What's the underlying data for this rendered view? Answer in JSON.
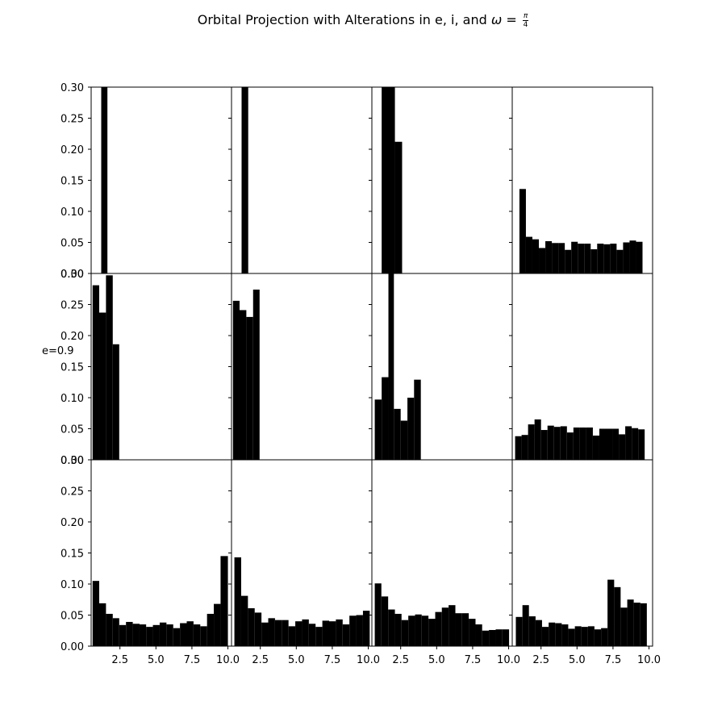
{
  "title": {
    "prefix": "Orbital Projection with Alterations in e, i, and",
    "symbol": "ω",
    "equals": "=",
    "frac_num": "π",
    "frac_den": "4"
  },
  "chart_data": {
    "type": "bar",
    "layout": {
      "rows": 3,
      "cols": 4
    },
    "xlim": [
      0.5,
      10.25
    ],
    "ylim": [
      0,
      0.3
    ],
    "x_ticks": [
      2.5,
      5.0,
      7.5,
      10.0
    ],
    "x_tick_labels": [
      "2.5",
      "5.0",
      "7.5",
      "10.0"
    ],
    "y_ticks": [
      0.0,
      0.05,
      0.1,
      0.15,
      0.2,
      0.25,
      0.3
    ],
    "y_tick_labels": [
      "0.00",
      "0.05",
      "0.10",
      "0.15",
      "0.20",
      "0.25",
      "0.30"
    ],
    "row_labels": [
      "",
      "e=0.9",
      ""
    ],
    "bar_color": "#000000",
    "panels": [
      {
        "row": 0,
        "col": 0,
        "bins": [
          [
            1.2,
            1.63,
            0.3
          ]
        ]
      },
      {
        "row": 0,
        "col": 1,
        "bins": [
          [
            1.2,
            1.66,
            0.3
          ]
        ]
      },
      {
        "row": 0,
        "col": 2,
        "bins": [
          [
            1.18,
            2.1,
            0.3
          ],
          [
            2.1,
            2.6,
            0.212
          ]
        ]
      },
      {
        "row": 0,
        "col": 3,
        "bins": [
          [
            1.0,
            1.45,
            0.136
          ],
          [
            1.45,
            1.9,
            0.059
          ],
          [
            1.9,
            2.35,
            0.055
          ],
          [
            2.35,
            2.8,
            0.041
          ],
          [
            2.8,
            3.25,
            0.052
          ],
          [
            3.25,
            3.7,
            0.049
          ],
          [
            3.7,
            4.15,
            0.049
          ],
          [
            4.15,
            4.6,
            0.038
          ],
          [
            4.6,
            5.05,
            0.051
          ],
          [
            5.05,
            5.5,
            0.048
          ],
          [
            5.5,
            5.95,
            0.048
          ],
          [
            5.95,
            6.4,
            0.039
          ],
          [
            6.4,
            6.85,
            0.048
          ],
          [
            6.85,
            7.3,
            0.047
          ],
          [
            7.3,
            7.75,
            0.048
          ],
          [
            7.75,
            8.2,
            0.038
          ],
          [
            8.2,
            8.65,
            0.05
          ],
          [
            8.65,
            9.1,
            0.053
          ],
          [
            9.1,
            9.55,
            0.051
          ]
        ]
      },
      {
        "row": 1,
        "col": 0,
        "bins": [
          [
            0.6,
            1.06,
            0.281
          ],
          [
            1.06,
            1.53,
            0.237
          ],
          [
            1.53,
            2.0,
            0.297
          ],
          [
            2.0,
            2.45,
            0.186
          ]
        ]
      },
      {
        "row": 1,
        "col": 1,
        "bins": [
          [
            0.6,
            1.06,
            0.256
          ],
          [
            1.06,
            1.53,
            0.241
          ],
          [
            1.53,
            2.0,
            0.23
          ],
          [
            2.0,
            2.45,
            0.274
          ]
        ]
      },
      {
        "row": 1,
        "col": 2,
        "bins": [
          [
            0.7,
            1.18,
            0.097
          ],
          [
            1.18,
            1.65,
            0.133
          ],
          [
            1.65,
            2.03,
            0.3
          ],
          [
            2.03,
            2.5,
            0.082
          ],
          [
            2.5,
            2.97,
            0.063
          ],
          [
            2.97,
            3.43,
            0.1
          ],
          [
            3.43,
            3.9,
            0.129
          ]
        ]
      },
      {
        "row": 1,
        "col": 3,
        "bins": [
          [
            0.7,
            1.15,
            0.038
          ],
          [
            1.15,
            1.6,
            0.04
          ],
          [
            1.6,
            2.05,
            0.057
          ],
          [
            2.05,
            2.5,
            0.065
          ],
          [
            2.5,
            2.95,
            0.048
          ],
          [
            2.95,
            3.4,
            0.055
          ],
          [
            3.4,
            3.85,
            0.053
          ],
          [
            3.85,
            4.3,
            0.054
          ],
          [
            4.3,
            4.75,
            0.044
          ],
          [
            4.75,
            5.2,
            0.052
          ],
          [
            5.2,
            5.65,
            0.052
          ],
          [
            5.65,
            6.1,
            0.052
          ],
          [
            6.1,
            6.55,
            0.039
          ],
          [
            6.55,
            7.0,
            0.05
          ],
          [
            7.0,
            7.45,
            0.05
          ],
          [
            7.45,
            7.9,
            0.05
          ],
          [
            7.9,
            8.35,
            0.041
          ],
          [
            8.35,
            8.8,
            0.054
          ],
          [
            8.8,
            9.25,
            0.051
          ],
          [
            9.25,
            9.7,
            0.049
          ]
        ]
      },
      {
        "row": 2,
        "col": 0,
        "bins": [
          [
            0.6,
            1.06,
            0.105
          ],
          [
            1.06,
            1.53,
            0.069
          ],
          [
            1.53,
            2.0,
            0.052
          ],
          [
            2.0,
            2.45,
            0.045
          ],
          [
            2.45,
            2.92,
            0.034
          ],
          [
            2.92,
            3.39,
            0.039
          ],
          [
            3.39,
            3.86,
            0.036
          ],
          [
            3.86,
            4.32,
            0.035
          ],
          [
            4.32,
            4.79,
            0.031
          ],
          [
            4.79,
            5.26,
            0.034
          ],
          [
            5.26,
            5.73,
            0.038
          ],
          [
            5.73,
            6.2,
            0.035
          ],
          [
            6.2,
            6.67,
            0.029
          ],
          [
            6.67,
            7.14,
            0.037
          ],
          [
            7.14,
            7.61,
            0.04
          ],
          [
            7.61,
            8.08,
            0.035
          ],
          [
            8.08,
            8.55,
            0.032
          ],
          [
            8.55,
            9.02,
            0.052
          ],
          [
            9.02,
            9.49,
            0.068
          ],
          [
            9.49,
            10.0,
            0.145
          ]
        ]
      },
      {
        "row": 2,
        "col": 1,
        "bins": [
          [
            0.7,
            1.17,
            0.143
          ],
          [
            1.17,
            1.64,
            0.081
          ],
          [
            1.64,
            2.11,
            0.061
          ],
          [
            2.11,
            2.58,
            0.054
          ],
          [
            2.58,
            3.05,
            0.038
          ],
          [
            3.05,
            3.52,
            0.045
          ],
          [
            3.52,
            3.99,
            0.042
          ],
          [
            3.99,
            4.46,
            0.042
          ],
          [
            4.46,
            4.93,
            0.032
          ],
          [
            4.93,
            5.4,
            0.04
          ],
          [
            5.4,
            5.87,
            0.043
          ],
          [
            5.87,
            6.34,
            0.036
          ],
          [
            6.34,
            6.81,
            0.031
          ],
          [
            6.81,
            7.28,
            0.041
          ],
          [
            7.28,
            7.75,
            0.04
          ],
          [
            7.75,
            8.22,
            0.043
          ],
          [
            8.22,
            8.69,
            0.035
          ],
          [
            8.69,
            9.16,
            0.049
          ],
          [
            9.16,
            9.63,
            0.05
          ],
          [
            9.63,
            10.1,
            0.057
          ]
        ]
      },
      {
        "row": 2,
        "col": 2,
        "bins": [
          [
            0.7,
            1.16,
            0.101
          ],
          [
            1.16,
            1.63,
            0.08
          ],
          [
            1.63,
            2.1,
            0.059
          ],
          [
            2.1,
            2.56,
            0.052
          ],
          [
            2.56,
            3.03,
            0.042
          ],
          [
            3.03,
            3.5,
            0.049
          ],
          [
            3.5,
            3.96,
            0.051
          ],
          [
            3.96,
            4.43,
            0.049
          ],
          [
            4.43,
            4.9,
            0.044
          ],
          [
            4.9,
            5.36,
            0.055
          ],
          [
            5.36,
            5.83,
            0.062
          ],
          [
            5.83,
            6.3,
            0.066
          ],
          [
            6.3,
            6.76,
            0.053
          ],
          [
            6.76,
            7.23,
            0.053
          ],
          [
            7.23,
            7.7,
            0.044
          ],
          [
            7.7,
            8.16,
            0.035
          ],
          [
            8.16,
            8.63,
            0.025
          ],
          [
            8.63,
            9.1,
            0.026
          ],
          [
            9.1,
            9.56,
            0.027
          ],
          [
            9.56,
            10.03,
            0.027
          ]
        ]
      },
      {
        "row": 2,
        "col": 3,
        "bins": [
          [
            0.75,
            1.21,
            0.047
          ],
          [
            1.21,
            1.66,
            0.066
          ],
          [
            1.66,
            2.12,
            0.048
          ],
          [
            2.12,
            2.57,
            0.042
          ],
          [
            2.57,
            3.03,
            0.031
          ],
          [
            3.03,
            3.48,
            0.038
          ],
          [
            3.48,
            3.94,
            0.037
          ],
          [
            3.94,
            4.39,
            0.035
          ],
          [
            4.39,
            4.85,
            0.028
          ],
          [
            4.85,
            5.3,
            0.032
          ],
          [
            5.3,
            5.76,
            0.031
          ],
          [
            5.76,
            6.21,
            0.032
          ],
          [
            6.21,
            6.67,
            0.027
          ],
          [
            6.67,
            7.12,
            0.029
          ],
          [
            7.12,
            7.58,
            0.107
          ],
          [
            7.58,
            8.03,
            0.095
          ],
          [
            8.03,
            8.49,
            0.062
          ],
          [
            8.49,
            8.94,
            0.075
          ],
          [
            8.94,
            9.4,
            0.07
          ],
          [
            9.4,
            9.85,
            0.069
          ]
        ]
      }
    ]
  }
}
